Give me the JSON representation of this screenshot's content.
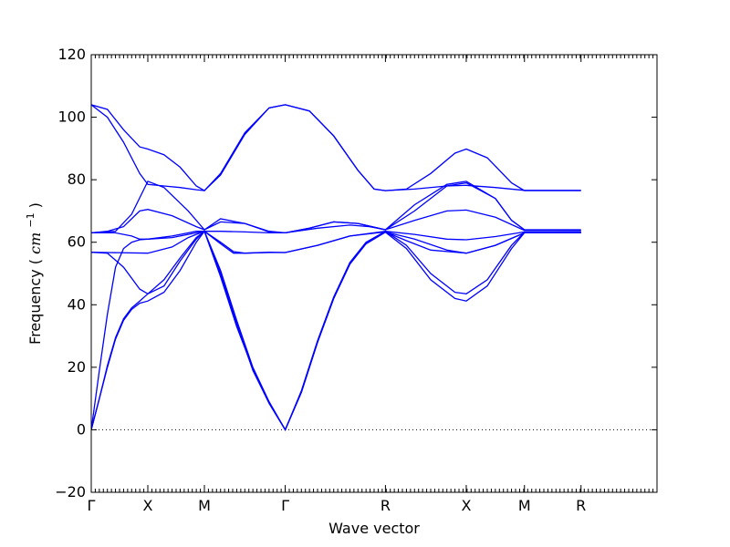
{
  "chart_data": {
    "type": "line",
    "title": "",
    "xlabel": "Wave vector",
    "ylabel": "Frequency",
    "ylabel_unit": "cm",
    "ylabel_unit_exponent": "−1",
    "ylim": [
      -20,
      120
    ],
    "yticks": [
      -20,
      0,
      20,
      40,
      60,
      80,
      100,
      120
    ],
    "xlim": [
      0,
      3.5
    ],
    "xticks": [
      {
        "label": "Γ",
        "x": 0
      },
      {
        "label": "X",
        "x": 0.35
      },
      {
        "label": "M",
        "x": 0.7
      },
      {
        "label": "Γ",
        "x": 1.2
      },
      {
        "label": "R",
        "x": 1.82
      },
      {
        "label": "X",
        "x": 2.32
      },
      {
        "label": "M",
        "x": 2.68
      },
      {
        "label": "R",
        "x": 3.03
      }
    ],
    "zero_line": true,
    "series_color": "#0000ff",
    "series": [
      {
        "points": [
          [
            0,
            104
          ],
          [
            0.1,
            102.5
          ],
          [
            0.2,
            96
          ],
          [
            0.3,
            90.5
          ],
          [
            0.35,
            89.8
          ],
          [
            0.45,
            88
          ],
          [
            0.55,
            84
          ],
          [
            0.65,
            78
          ],
          [
            0.7,
            76.5
          ],
          [
            0.8,
            82
          ],
          [
            0.95,
            95
          ],
          [
            1.1,
            103
          ],
          [
            1.2,
            104
          ],
          [
            1.35,
            102
          ],
          [
            1.5,
            94
          ],
          [
            1.65,
            83
          ],
          [
            1.75,
            77
          ],
          [
            1.82,
            76.5
          ],
          [
            1.95,
            77
          ],
          [
            2.1,
            82
          ],
          [
            2.25,
            88.5
          ],
          [
            2.32,
            89.8
          ],
          [
            2.45,
            87
          ],
          [
            2.6,
            79
          ],
          [
            2.68,
            76.5
          ],
          [
            3.03,
            76.5
          ]
        ]
      },
      {
        "points": [
          [
            0,
            104
          ],
          [
            0.1,
            100
          ],
          [
            0.2,
            92
          ],
          [
            0.3,
            82
          ],
          [
            0.35,
            78.5
          ],
          [
            0.45,
            78
          ],
          [
            0.55,
            77.5
          ],
          [
            0.65,
            76.8
          ],
          [
            0.7,
            76.5
          ],
          [
            0.8,
            81.5
          ],
          [
            0.95,
            94.5
          ],
          [
            1.1,
            103
          ],
          [
            1.2,
            104
          ],
          [
            1.35,
            102
          ],
          [
            1.5,
            94
          ],
          [
            1.65,
            83
          ],
          [
            1.75,
            77
          ],
          [
            1.82,
            76.5
          ],
          [
            2.0,
            77
          ],
          [
            2.2,
            78
          ],
          [
            2.32,
            78.2
          ],
          [
            2.5,
            77.5
          ],
          [
            2.68,
            76.6
          ],
          [
            3.03,
            76.6
          ]
        ]
      },
      {
        "points": [
          [
            0,
            63
          ],
          [
            0.15,
            63.5
          ],
          [
            0.25,
            69
          ],
          [
            0.35,
            79.5
          ],
          [
            0.45,
            77.5
          ],
          [
            0.6,
            70
          ],
          [
            0.7,
            64
          ],
          [
            0.8,
            67.5
          ],
          [
            0.95,
            66
          ],
          [
            1.1,
            63.5
          ],
          [
            1.2,
            63
          ],
          [
            1.35,
            64.5
          ],
          [
            1.5,
            66.5
          ],
          [
            1.65,
            66
          ],
          [
            1.82,
            64
          ],
          [
            2.0,
            72
          ],
          [
            2.2,
            78.5
          ],
          [
            2.32,
            79.5
          ],
          [
            2.5,
            74
          ],
          [
            2.6,
            67
          ],
          [
            2.68,
            64
          ],
          [
            3.03,
            64
          ]
        ]
      },
      {
        "points": [
          [
            0,
            63
          ],
          [
            0.1,
            63.5
          ],
          [
            0.2,
            65
          ],
          [
            0.3,
            70
          ],
          [
            0.35,
            70.5
          ],
          [
            0.5,
            68.5
          ],
          [
            0.65,
            65
          ],
          [
            0.7,
            64
          ],
          [
            0.8,
            66.5
          ],
          [
            0.95,
            66
          ],
          [
            1.1,
            63.3
          ],
          [
            1.2,
            63
          ],
          [
            1.35,
            64.5
          ],
          [
            1.5,
            66.5
          ],
          [
            1.65,
            66
          ],
          [
            1.82,
            64
          ],
          [
            2.0,
            70
          ],
          [
            2.2,
            78
          ],
          [
            2.32,
            79
          ],
          [
            2.5,
            74
          ],
          [
            2.6,
            67
          ],
          [
            2.68,
            64
          ],
          [
            3.03,
            63.8
          ]
        ]
      },
      {
        "points": [
          [
            0,
            63
          ],
          [
            0.15,
            63
          ],
          [
            0.25,
            62
          ],
          [
            0.3,
            61
          ],
          [
            0.35,
            61
          ],
          [
            0.5,
            62
          ],
          [
            0.65,
            63.5
          ],
          [
            0.7,
            63.5
          ],
          [
            0.8,
            63.5
          ],
          [
            0.95,
            63.3
          ],
          [
            1.1,
            63
          ],
          [
            1.2,
            63
          ],
          [
            1.4,
            64.5
          ],
          [
            1.6,
            65.5
          ],
          [
            1.72,
            65
          ],
          [
            1.82,
            64
          ],
          [
            2.0,
            67
          ],
          [
            2.2,
            70
          ],
          [
            2.32,
            70.3
          ],
          [
            2.5,
            68
          ],
          [
            2.68,
            63.8
          ],
          [
            3.03,
            63.8
          ]
        ]
      },
      {
        "points": [
          [
            0,
            56.8
          ],
          [
            0.1,
            56.7
          ],
          [
            0.35,
            56.5
          ],
          [
            0.5,
            58.5
          ],
          [
            0.6,
            61.5
          ],
          [
            0.7,
            63.5
          ],
          [
            0.8,
            60
          ],
          [
            0.88,
            57
          ],
          [
            0.95,
            56.5
          ],
          [
            1.1,
            56.7
          ],
          [
            1.2,
            56.7
          ],
          [
            1.4,
            59
          ],
          [
            1.6,
            62
          ],
          [
            1.82,
            63.5
          ],
          [
            2.0,
            62.5
          ],
          [
            2.2,
            61
          ],
          [
            2.32,
            60.8
          ],
          [
            2.5,
            61.8
          ],
          [
            2.68,
            63.3
          ],
          [
            3.03,
            63.3
          ]
        ]
      },
      {
        "points": [
          [
            0,
            56.8
          ],
          [
            0.1,
            56.5
          ],
          [
            0.2,
            52
          ],
          [
            0.3,
            45
          ],
          [
            0.35,
            43.5
          ],
          [
            0.45,
            46
          ],
          [
            0.55,
            54
          ],
          [
            0.65,
            61
          ],
          [
            0.7,
            63.5
          ],
          [
            0.8,
            59.5
          ],
          [
            0.88,
            56.5
          ],
          [
            0.95,
            56.5
          ],
          [
            1.1,
            56.8
          ],
          [
            1.2,
            56.7
          ],
          [
            1.4,
            59
          ],
          [
            1.6,
            62
          ],
          [
            1.82,
            63.3
          ],
          [
            2.0,
            61
          ],
          [
            2.2,
            57.5
          ],
          [
            2.32,
            56.5
          ],
          [
            2.5,
            59
          ],
          [
            2.68,
            63
          ],
          [
            3.03,
            63
          ]
        ]
      },
      {
        "points": [
          [
            0,
            0
          ],
          [
            0.05,
            10
          ],
          [
            0.1,
            20
          ],
          [
            0.15,
            29
          ],
          [
            0.2,
            35
          ],
          [
            0.25,
            38.5
          ],
          [
            0.3,
            40.5
          ],
          [
            0.35,
            41.2
          ],
          [
            0.45,
            44
          ],
          [
            0.55,
            51
          ],
          [
            0.65,
            60
          ],
          [
            0.7,
            63.5
          ],
          [
            0.8,
            50
          ],
          [
            0.9,
            34
          ],
          [
            1.0,
            19
          ],
          [
            1.1,
            8.5
          ],
          [
            1.2,
            0
          ],
          [
            1.3,
            12
          ],
          [
            1.4,
            28
          ],
          [
            1.5,
            42
          ],
          [
            1.6,
            53
          ],
          [
            1.7,
            59.5
          ],
          [
            1.82,
            63.2
          ],
          [
            1.95,
            58
          ],
          [
            2.1,
            48
          ],
          [
            2.25,
            42
          ],
          [
            2.32,
            41.2
          ],
          [
            2.45,
            46
          ],
          [
            2.6,
            58
          ],
          [
            2.68,
            63
          ],
          [
            3.03,
            63
          ]
        ]
      },
      {
        "points": [
          [
            0,
            0
          ],
          [
            0.05,
            10
          ],
          [
            0.1,
            20.5
          ],
          [
            0.15,
            29.5
          ],
          [
            0.2,
            35.5
          ],
          [
            0.25,
            39
          ],
          [
            0.3,
            41.2
          ],
          [
            0.35,
            43.5
          ],
          [
            0.45,
            48
          ],
          [
            0.55,
            55
          ],
          [
            0.65,
            61.5
          ],
          [
            0.7,
            63.5
          ],
          [
            0.8,
            51
          ],
          [
            0.9,
            35
          ],
          [
            1.0,
            20
          ],
          [
            1.1,
            9
          ],
          [
            1.2,
            0
          ],
          [
            1.3,
            12.5
          ],
          [
            1.4,
            28.5
          ],
          [
            1.5,
            42.5
          ],
          [
            1.6,
            53.5
          ],
          [
            1.7,
            60
          ],
          [
            1.82,
            63.5
          ],
          [
            1.95,
            59
          ],
          [
            2.1,
            50
          ],
          [
            2.25,
            44
          ],
          [
            2.32,
            43.5
          ],
          [
            2.45,
            48
          ],
          [
            2.6,
            59
          ],
          [
            2.68,
            63.2
          ],
          [
            3.03,
            63.2
          ]
        ]
      },
      {
        "points": [
          [
            0,
            0
          ],
          [
            0.05,
            19
          ],
          [
            0.1,
            37
          ],
          [
            0.15,
            52
          ],
          [
            0.2,
            58
          ],
          [
            0.25,
            60
          ],
          [
            0.3,
            60.8
          ],
          [
            0.35,
            61
          ],
          [
            0.5,
            61.5
          ],
          [
            0.65,
            63
          ],
          [
            0.7,
            63.5
          ],
          [
            0.8,
            49
          ],
          [
            0.9,
            33
          ],
          [
            1.0,
            19.5
          ],
          [
            1.1,
            8.5
          ],
          [
            1.2,
            0
          ],
          [
            1.3,
            12
          ],
          [
            1.4,
            28
          ],
          [
            1.5,
            42
          ],
          [
            1.6,
            53
          ],
          [
            1.7,
            59.5
          ],
          [
            1.82,
            63.3
          ],
          [
            1.95,
            60.5
          ],
          [
            2.1,
            57.5
          ],
          [
            2.32,
            56.5
          ],
          [
            2.5,
            59
          ],
          [
            2.68,
            63
          ],
          [
            3.03,
            63
          ]
        ]
      }
    ]
  }
}
